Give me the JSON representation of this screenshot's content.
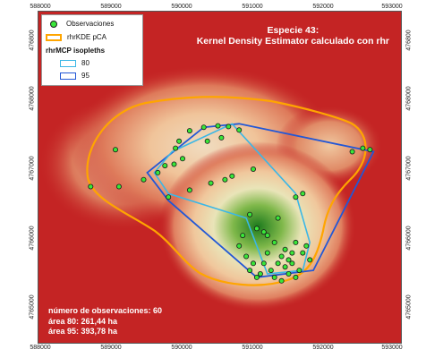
{
  "title": {
    "line1": "Especie 43:",
    "line2": "Kernel Density Estimator calculado con rhr"
  },
  "legend": {
    "observaciones": "Observaciones",
    "kde": "rhrKDE pCA",
    "mcp_heading": "rhrMCP isopleths",
    "mcp80": "80",
    "mcp95": "95"
  },
  "stats": {
    "n_obs": "número de observaciones: 60",
    "area80": "área 80: 261,44 ha",
    "area95": "área 95: 393,78 ha"
  },
  "axes": {
    "x_ticks": [
      "588000",
      "589000",
      "590000",
      "591000",
      "592000",
      "593000"
    ],
    "y_ticks": [
      "4768000",
      "4767000",
      "4766000",
      "4765000"
    ],
    "y_top_partial": "476800"
  },
  "colors": {
    "background_low": "#c42424",
    "density_high": "#1d7a1d",
    "kde_outline": "#ffa500",
    "mcp80": "#3bb7e6",
    "mcp95": "#2257d6",
    "points": "#39e639"
  },
  "observations": [
    [
      590100,
      4767550
    ],
    [
      590300,
      4767600
    ],
    [
      590500,
      4767620
    ],
    [
      590650,
      4767610
    ],
    [
      590800,
      4767560
    ],
    [
      589900,
      4767300
    ],
    [
      590000,
      4767150
    ],
    [
      589750,
      4767050
    ],
    [
      589880,
      4767070
    ],
    [
      589450,
      4766850
    ],
    [
      589800,
      4766600
    ],
    [
      589050,
      4767280
    ],
    [
      588700,
      4766750
    ],
    [
      589100,
      4766750
    ],
    [
      590400,
      4766800
    ],
    [
      590600,
      4766850
    ],
    [
      590700,
      4766900
    ],
    [
      591000,
      4767000
    ],
    [
      592400,
      4767250
    ],
    [
      592550,
      4767300
    ],
    [
      592650,
      4767280
    ],
    [
      591600,
      4766600
    ],
    [
      590950,
      4766350
    ],
    [
      591050,
      4766150
    ],
    [
      591150,
      4766100
    ],
    [
      591350,
      4766300
    ],
    [
      591500,
      4765700
    ],
    [
      591550,
      4765650
    ],
    [
      591450,
      4765850
    ],
    [
      591600,
      4765950
    ],
    [
      591700,
      4765800
    ],
    [
      591750,
      4765900
    ],
    [
      591300,
      4765950
    ],
    [
      591400,
      4765750
    ],
    [
      591250,
      4765550
    ],
    [
      591100,
      4765500
    ],
    [
      591000,
      4765650
    ],
    [
      590800,
      4765900
    ],
    [
      590850,
      4766050
    ],
    [
      591200,
      4765800
    ],
    [
      591350,
      4765650
    ],
    [
      591500,
      4765500
    ],
    [
      591650,
      4765550
    ],
    [
      591300,
      4765450
    ],
    [
      591050,
      4765450
    ],
    [
      590950,
      4765550
    ],
    [
      591150,
      4765650
    ],
    [
      591450,
      4765600
    ],
    [
      591550,
      4765800
    ],
    [
      591800,
      4765700
    ],
    [
      590550,
      4767450
    ],
    [
      590350,
      4767400
    ],
    [
      589950,
      4767400
    ],
    [
      589650,
      4766950
    ],
    [
      590100,
      4766700
    ],
    [
      591700,
      4766650
    ],
    [
      591200,
      4766050
    ],
    [
      590900,
      4765750
    ],
    [
      591600,
      4765450
    ],
    [
      591400,
      4765400
    ]
  ],
  "mcp80": [
    [
      589850,
      4767250
    ],
    [
      590700,
      4767650
    ],
    [
      591600,
      4766650
    ],
    [
      591800,
      4765950
    ],
    [
      591700,
      4765550
    ],
    [
      591200,
      4765500
    ],
    [
      590900,
      4766300
    ],
    [
      589800,
      4766650
    ],
    [
      589600,
      4766950
    ]
  ],
  "mcp95": [
    [
      589500,
      4766950
    ],
    [
      590300,
      4767600
    ],
    [
      590800,
      4767650
    ],
    [
      592700,
      4767250
    ],
    [
      591850,
      4765550
    ],
    [
      591050,
      4765450
    ],
    [
      589800,
      4766550
    ]
  ]
}
